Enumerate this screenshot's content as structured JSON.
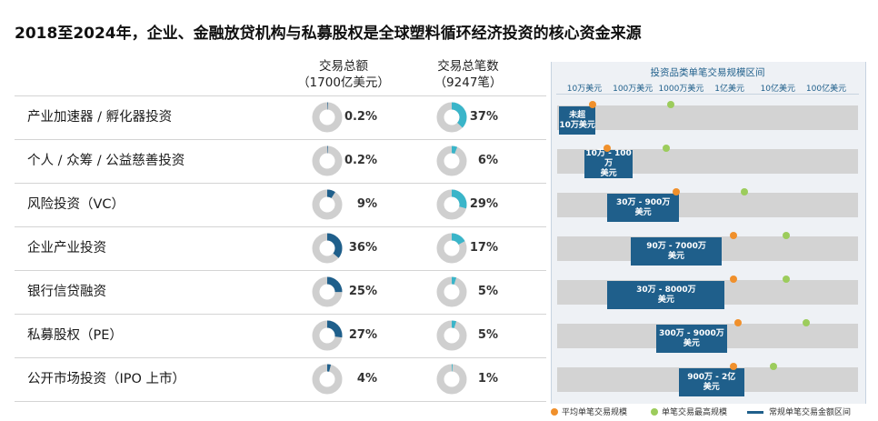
{
  "title": "2018至2024年，企业、金融放贷机构与私募股权是全球塑料循环经济投资的核心资金来源",
  "columns": {
    "amount": {
      "line1": "交易总额",
      "line2": "（1700亿美元）"
    },
    "count": {
      "line1": "交易总笔数",
      "line2": "（9247笔）"
    }
  },
  "range_panel": {
    "title": "投资品类单笔交易规模区间",
    "ticks": [
      "10万美元",
      "100万美元",
      "1000万美元",
      "1亿美元",
      "10亿美元",
      "100亿美元"
    ]
  },
  "colors": {
    "amount_donut": "#1f5f8b",
    "count_donut": "#3ab5c9",
    "donut_track": "#cfcfcf",
    "range_bar": "#1f5f8b",
    "average_dot": "#f0902c",
    "max_dot": "#9ccc5c"
  },
  "legend": {
    "average": "平均单笔交易规模",
    "max": "单笔交易最高规模",
    "range": "常规单笔交易金额区间"
  },
  "chart_data": {
    "type": "table",
    "title": "2018至2024年，企业、金融放贷机构与私募股权是全球塑料循环经济投资的核心资金来源",
    "range_axis": {
      "scale": "log10",
      "unit": "美元",
      "ticks": [
        "10万美元",
        "100万美元",
        "1000万美元",
        "1亿美元",
        "10亿美元",
        "100亿美元"
      ],
      "tick_values": [
        100000,
        1000000,
        10000000,
        100000000,
        1000000000,
        10000000000
      ]
    },
    "rows": [
      {
        "category": "产业加速器 / 孵化器投资",
        "amount_share": 0.2,
        "amount_label": "0.2%",
        "count_share": 37,
        "count_label": "37%",
        "range_label": "未超\n10万美元",
        "range_min": 30000,
        "range_max": 100000,
        "average": 150000,
        "max": 6000000
      },
      {
        "category": "个人 / 众筹 / 公益慈善投资",
        "amount_share": 0.2,
        "amount_label": "0.2%",
        "count_share": 6,
        "count_label": "6%",
        "range_label": "10万 - 100万\n美元",
        "range_min": 100000,
        "range_max": 1000000,
        "average": 300000,
        "max": 5000000
      },
      {
        "category": "风险投资（VC）",
        "amount_share": 9,
        "amount_label": "9%",
        "count_share": 29,
        "count_label": "29%",
        "range_label": "30万 - 900万\n美元",
        "range_min": 300000,
        "range_max": 9000000,
        "average": 8000000,
        "max": 200000000
      },
      {
        "category": "企业产业投资",
        "amount_share": 36,
        "amount_label": "36%",
        "count_share": 17,
        "count_label": "17%",
        "range_label": "90万 - 7000万\n美元",
        "range_min": 900000,
        "range_max": 70000000,
        "average": 120000000,
        "max": 1500000000
      },
      {
        "category": "银行信贷融资",
        "amount_share": 25,
        "amount_label": "25%",
        "count_share": 5,
        "count_label": "5%",
        "range_label": "30万 - 8000万\n美元",
        "range_min": 300000,
        "range_max": 80000000,
        "average": 120000000,
        "max": 1500000000
      },
      {
        "category": "私募股权（PE）",
        "amount_share": 27,
        "amount_label": "27%",
        "count_share": 5,
        "count_label": "5%",
        "range_label": "300万 - 9000万\n美元",
        "range_min": 3000000,
        "range_max": 90000000,
        "average": 150000000,
        "max": 3800000000
      },
      {
        "category": "公开市场投资（IPO 上市）",
        "amount_share": 4,
        "amount_label": "4%",
        "count_share": 1,
        "count_label": "1%",
        "range_label": "900万 - 2亿\n美元",
        "range_min": 9000000,
        "range_max": 200000000,
        "average": 120000000,
        "max": 800000000
      }
    ]
  }
}
